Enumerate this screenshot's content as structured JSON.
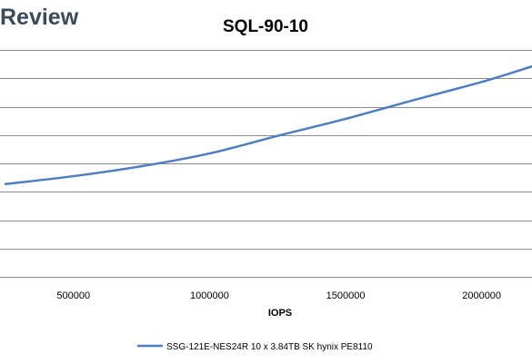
{
  "brand": {
    "logo_text": "Review"
  },
  "colors": {
    "series": "#4f7ec0",
    "grid": "#8c8c8c",
    "logo": "#3a4a57"
  },
  "chart_data": {
    "type": "line",
    "title": "SQL-90-10",
    "xlabel": "IOPS",
    "ylabel": "",
    "x_ticks": [
      500000,
      1000000,
      1500000,
      2000000
    ],
    "x_tick_labels": [
      "500000",
      "1000000",
      "1500000",
      "2000000"
    ],
    "xlim": [
      230000,
      2185000
    ],
    "ylim": [
      0,
      8
    ],
    "y_gridlines": [
      0,
      1,
      2,
      3,
      4,
      5,
      6,
      7,
      8
    ],
    "y_tick_labels_visible": false,
    "grid": true,
    "legend_position": "bottom",
    "series": [
      {
        "name": "SSG-121E-NES24R 10 x 3.84TB SK hynix PE8110",
        "x": [
          250000,
          500000,
          750000,
          1000000,
          1250000,
          1500000,
          1750000,
          2000000,
          2185000
        ],
        "y": [
          3.27,
          3.55,
          3.9,
          4.35,
          4.97,
          5.57,
          6.23,
          6.87,
          7.42
        ]
      }
    ]
  }
}
